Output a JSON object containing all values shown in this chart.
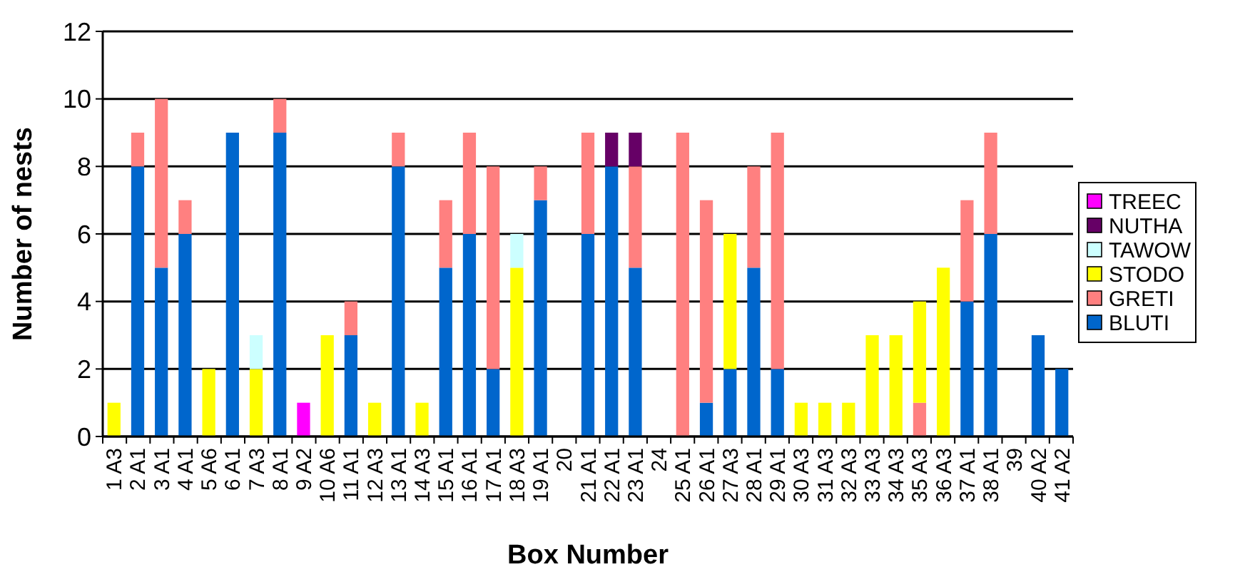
{
  "chart_data": {
    "type": "bar",
    "stacked": true,
    "xlabel": "Box Number",
    "ylabel": "Number of nests",
    "categories": [
      "1 A3",
      "2 A1",
      "3 A1",
      "4 A1",
      "5 A6",
      "6 A1",
      "7 A3",
      "8 A1",
      "9 A2",
      "10 A6",
      "11 A1",
      "12 A3",
      "13 A1",
      "14 A3",
      "15 A1",
      "16 A1",
      "17 A1",
      "18 A3",
      "19 A1",
      "20",
      "21 A1",
      "22 A1",
      "23 A1",
      "24",
      "25 A1",
      "26 A1",
      "27 A3",
      "28 A1",
      "29 A1",
      "30 A3",
      "31 A3",
      "32 A3",
      "33 A3",
      "34 A3",
      "35 A3",
      "36 A3",
      "37 A1",
      "38 A1",
      "39",
      "40 A2",
      "41 A2"
    ],
    "series": [
      {
        "name": "BLUTI",
        "color": "#0066cc",
        "values": [
          null,
          8,
          5,
          6,
          null,
          9,
          null,
          9,
          null,
          null,
          3,
          null,
          8,
          null,
          5,
          6,
          2,
          null,
          7,
          null,
          6,
          8,
          5,
          null,
          null,
          1,
          2,
          5,
          2,
          null,
          null,
          null,
          null,
          null,
          null,
          null,
          4,
          6,
          null,
          3,
          2
        ]
      },
      {
        "name": "GRETI",
        "color": "#ff8080",
        "values": [
          null,
          1,
          5,
          1,
          null,
          null,
          null,
          1,
          null,
          null,
          1,
          null,
          1,
          null,
          2,
          3,
          6,
          null,
          1,
          null,
          3,
          null,
          3,
          null,
          9,
          6,
          null,
          3,
          7,
          null,
          null,
          null,
          null,
          null,
          1,
          null,
          3,
          3,
          null,
          null,
          null
        ]
      },
      {
        "name": "STODO",
        "color": "#ffff00",
        "values": [
          1,
          null,
          null,
          null,
          2,
          null,
          2,
          null,
          null,
          3,
          null,
          1,
          null,
          1,
          null,
          null,
          null,
          5,
          null,
          null,
          null,
          null,
          null,
          null,
          null,
          null,
          4,
          null,
          null,
          1,
          1,
          1,
          3,
          3,
          3,
          5,
          null,
          null,
          null,
          null,
          null
        ]
      },
      {
        "name": "TAWOW",
        "color": "#ccffff",
        "values": [
          null,
          null,
          null,
          null,
          null,
          null,
          1,
          null,
          null,
          null,
          null,
          null,
          null,
          null,
          null,
          null,
          null,
          1,
          null,
          null,
          null,
          null,
          null,
          null,
          null,
          null,
          null,
          null,
          null,
          null,
          null,
          null,
          null,
          null,
          null,
          null,
          null,
          null,
          null,
          null,
          null
        ]
      },
      {
        "name": "NUTHA",
        "color": "#660066",
        "values": [
          null,
          null,
          null,
          null,
          null,
          null,
          null,
          null,
          null,
          null,
          null,
          null,
          null,
          null,
          null,
          null,
          null,
          null,
          null,
          null,
          null,
          1,
          1,
          null,
          null,
          null,
          null,
          null,
          null,
          null,
          null,
          null,
          null,
          null,
          null,
          null,
          null,
          null,
          null,
          null,
          null
        ]
      },
      {
        "name": "TREEC",
        "color": "#ff00ff",
        "values": [
          null,
          null,
          null,
          null,
          null,
          null,
          null,
          null,
          1,
          null,
          null,
          null,
          null,
          null,
          null,
          null,
          null,
          null,
          null,
          null,
          null,
          null,
          null,
          null,
          null,
          null,
          null,
          null,
          null,
          null,
          null,
          null,
          null,
          null,
          null,
          null,
          null,
          null,
          null,
          null,
          null
        ]
      }
    ],
    "ylim": [
      0,
      12
    ],
    "yticks": [
      0,
      2,
      4,
      6,
      8,
      10,
      12
    ],
    "grid": "y",
    "legend": "right"
  }
}
